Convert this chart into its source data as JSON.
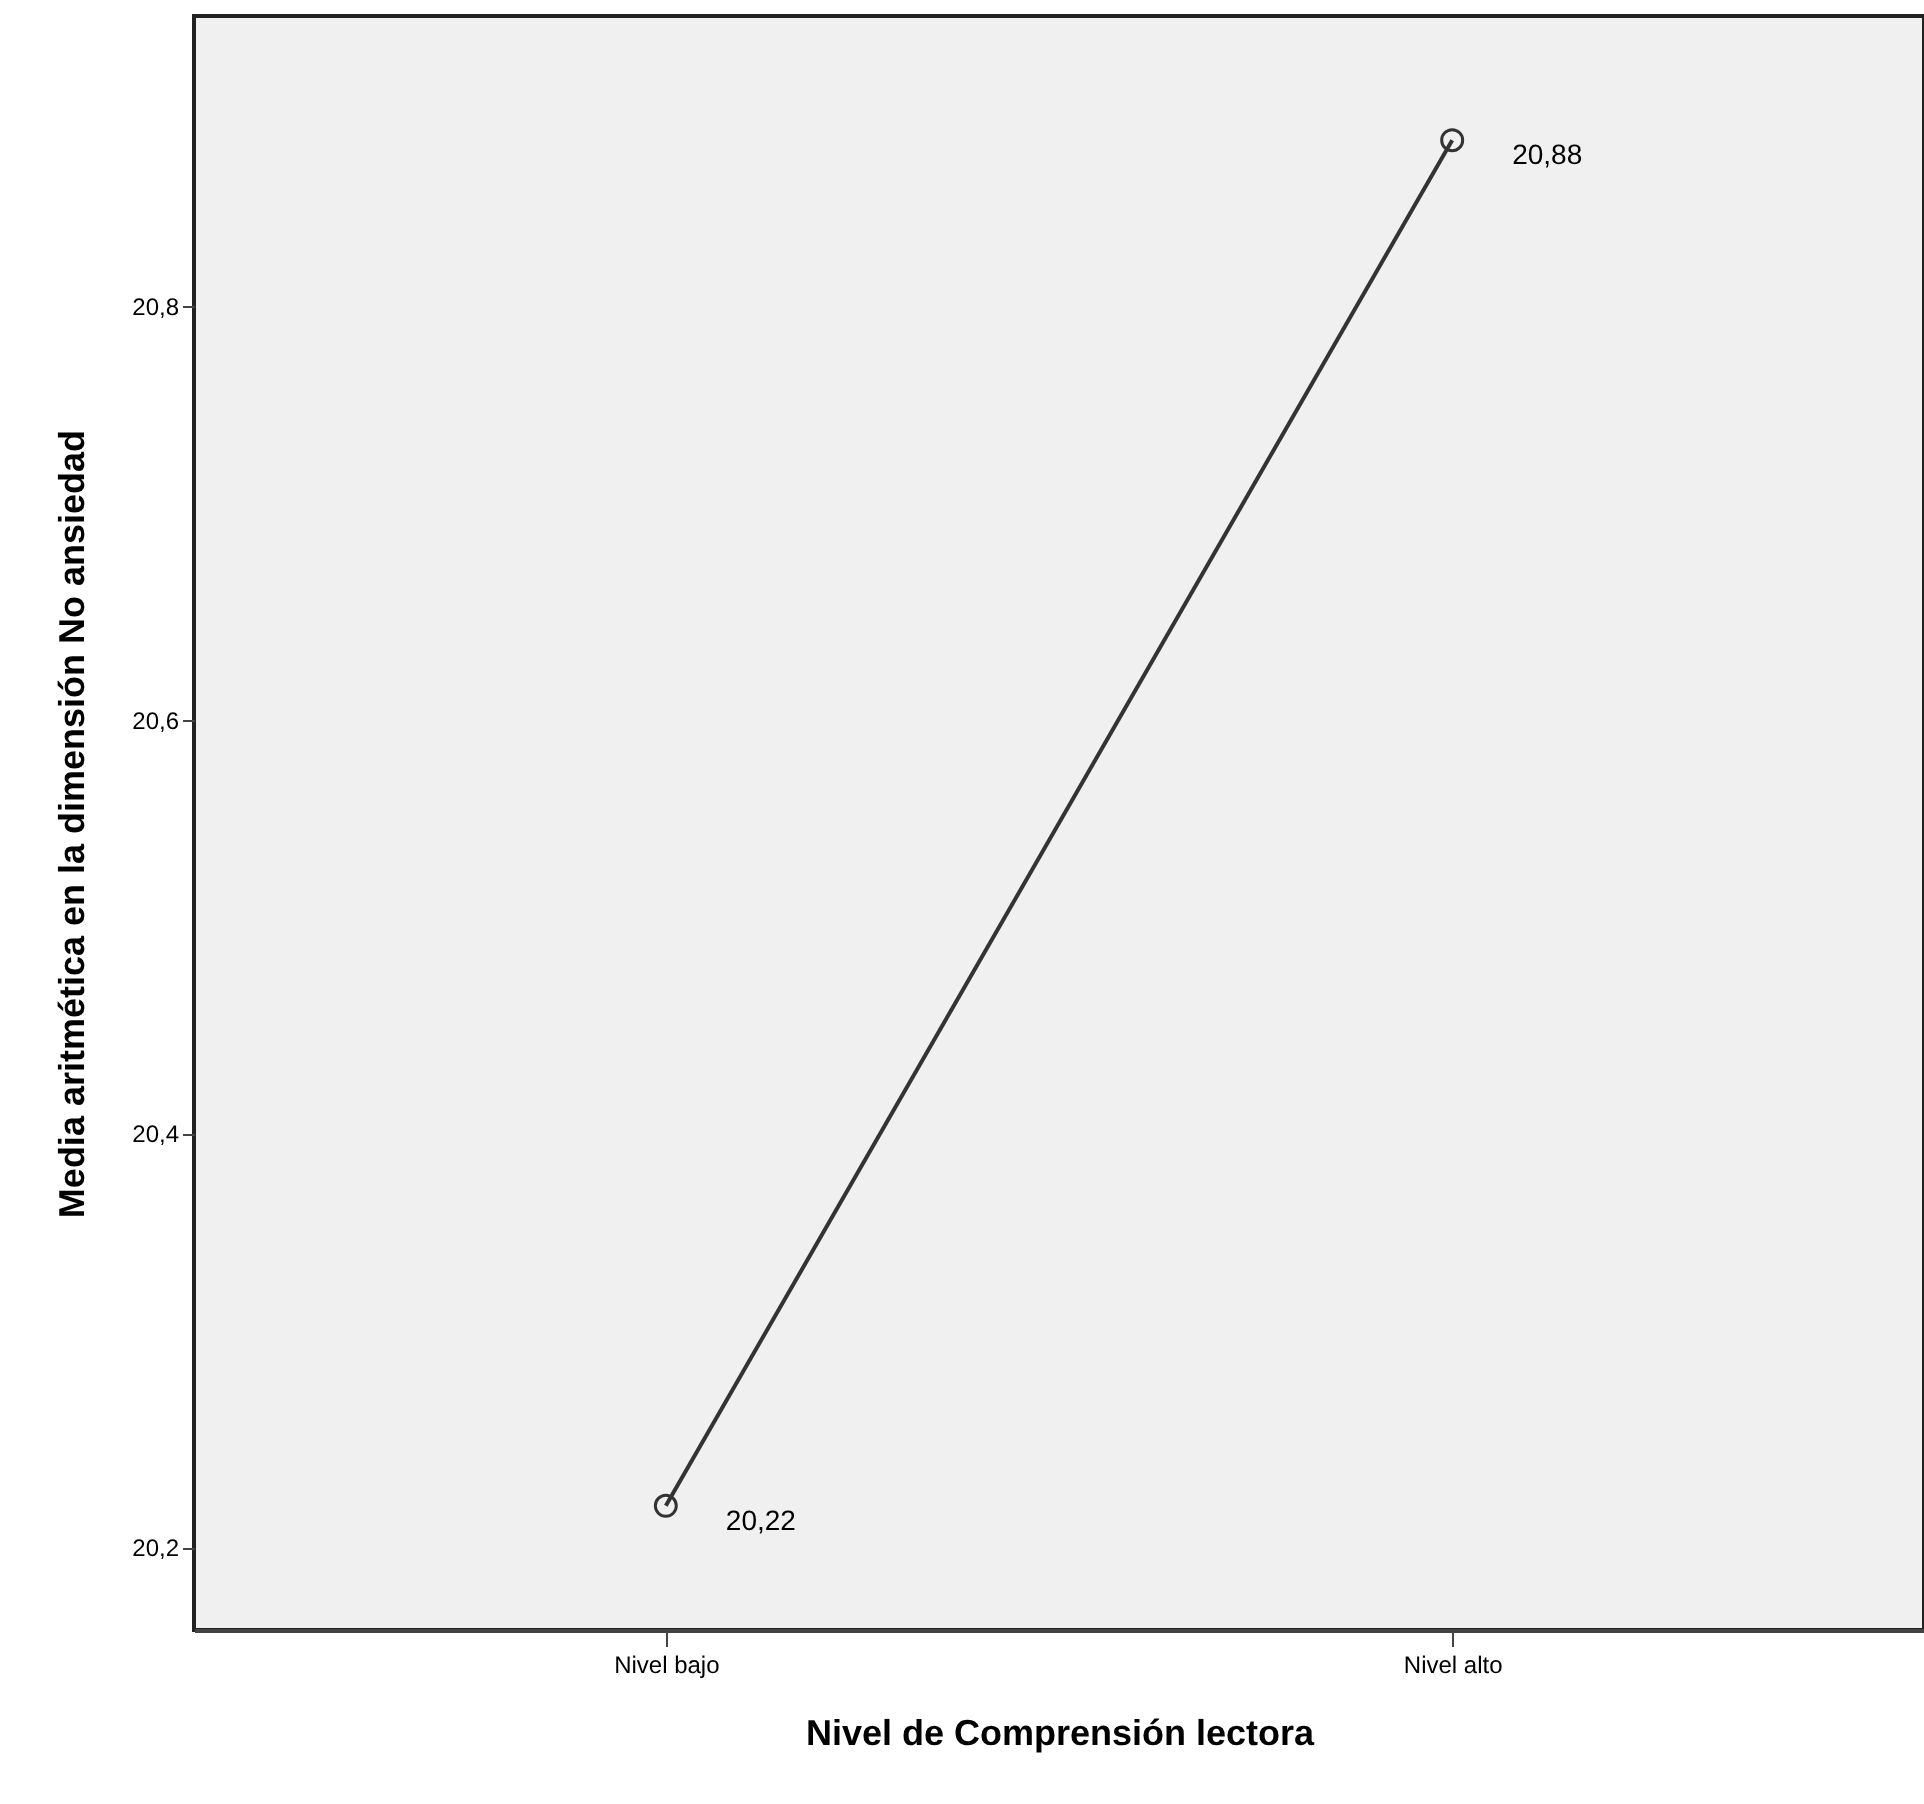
{
  "chart_data": {
    "type": "line",
    "xlabel": "Nivel de Comprensión lectora",
    "ylabel": "Media aritmética en la dimensión No ansiedad",
    "categories": [
      "Nivel bajo",
      "Nivel alto"
    ],
    "series": [
      {
        "color": "#333333",
        "values": [
          20.22,
          20.88
        ]
      }
    ],
    "value_labels": [
      "20,22",
      "20,88"
    ],
    "ylim": [
      20.16,
      20.94
    ],
    "yticks": [
      {
        "value": 20.2,
        "label": "20,2"
      },
      {
        "value": 20.4,
        "label": "20,4"
      },
      {
        "value": 20.6,
        "label": "20,6"
      },
      {
        "value": 20.8,
        "label": "20,8"
      }
    ],
    "marker": "circle",
    "line_style": "solid"
  }
}
